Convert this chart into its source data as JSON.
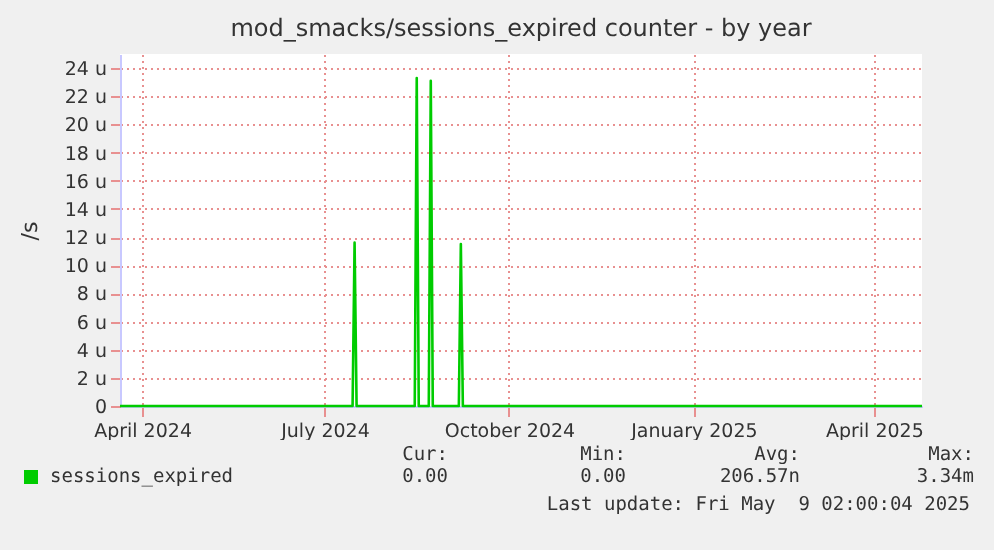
{
  "chart_data": {
    "type": "line",
    "title": "mod_smacks/sessions_expired counter - by year",
    "ylabel": "/s",
    "x": [
      "2024-03-21",
      "2024-07-15",
      "2024-07-16",
      "2024-07-17",
      "2024-08-15",
      "2024-08-16",
      "2024-08-17",
      "2024-08-22",
      "2024-08-23",
      "2024-08-24",
      "2024-09-06",
      "2024-09-07",
      "2024-09-08",
      "2025-04-25"
    ],
    "series": [
      {
        "name": "sessions_expired",
        "color": "#00cc00",
        "values": [
          0,
          0,
          11.6,
          0,
          0,
          23.3,
          0,
          0,
          23.1,
          0,
          0,
          11.5,
          0,
          0
        ]
      }
    ],
    "xlim": [
      "2024-03-21",
      "2025-04-25"
    ],
    "xticks": [
      {
        "value": "2024-04-01",
        "label": "April 2024"
      },
      {
        "value": "2024-07-01",
        "label": "July 2024"
      },
      {
        "value": "2024-10-01",
        "label": "October 2024"
      },
      {
        "value": "2025-01-01",
        "label": "January 2025"
      },
      {
        "value": "2025-04-01",
        "label": "April 2025"
      }
    ],
    "ylim": [
      0,
      25
    ],
    "yticks": [
      0,
      {
        "value": 2,
        "label": "2 u"
      },
      {
        "value": 4,
        "label": "4 u"
      },
      {
        "value": 6,
        "label": "6 u"
      },
      {
        "value": 8,
        "label": "8 u"
      },
      {
        "value": 10,
        "label": "10 u"
      },
      {
        "value": 12,
        "label": "12 u"
      },
      {
        "value": 14,
        "label": "14 u"
      },
      {
        "value": 16,
        "label": "16 u"
      },
      {
        "value": 18,
        "label": "18 u"
      },
      {
        "value": 20,
        "label": "20 u"
      },
      {
        "value": 22,
        "label": "22 u"
      },
      {
        "value": 24,
        "label": "24 u"
      }
    ],
    "grid": true,
    "legend": "bottom left",
    "line_style": "solid",
    "annotations": [
      "Cur:",
      "Min:",
      "Avg:",
      "Max:",
      "0.00",
      "0.00",
      "206.57n",
      "3.34m",
      "Last update: Fri May  9 02:00:04 2025"
    ]
  }
}
